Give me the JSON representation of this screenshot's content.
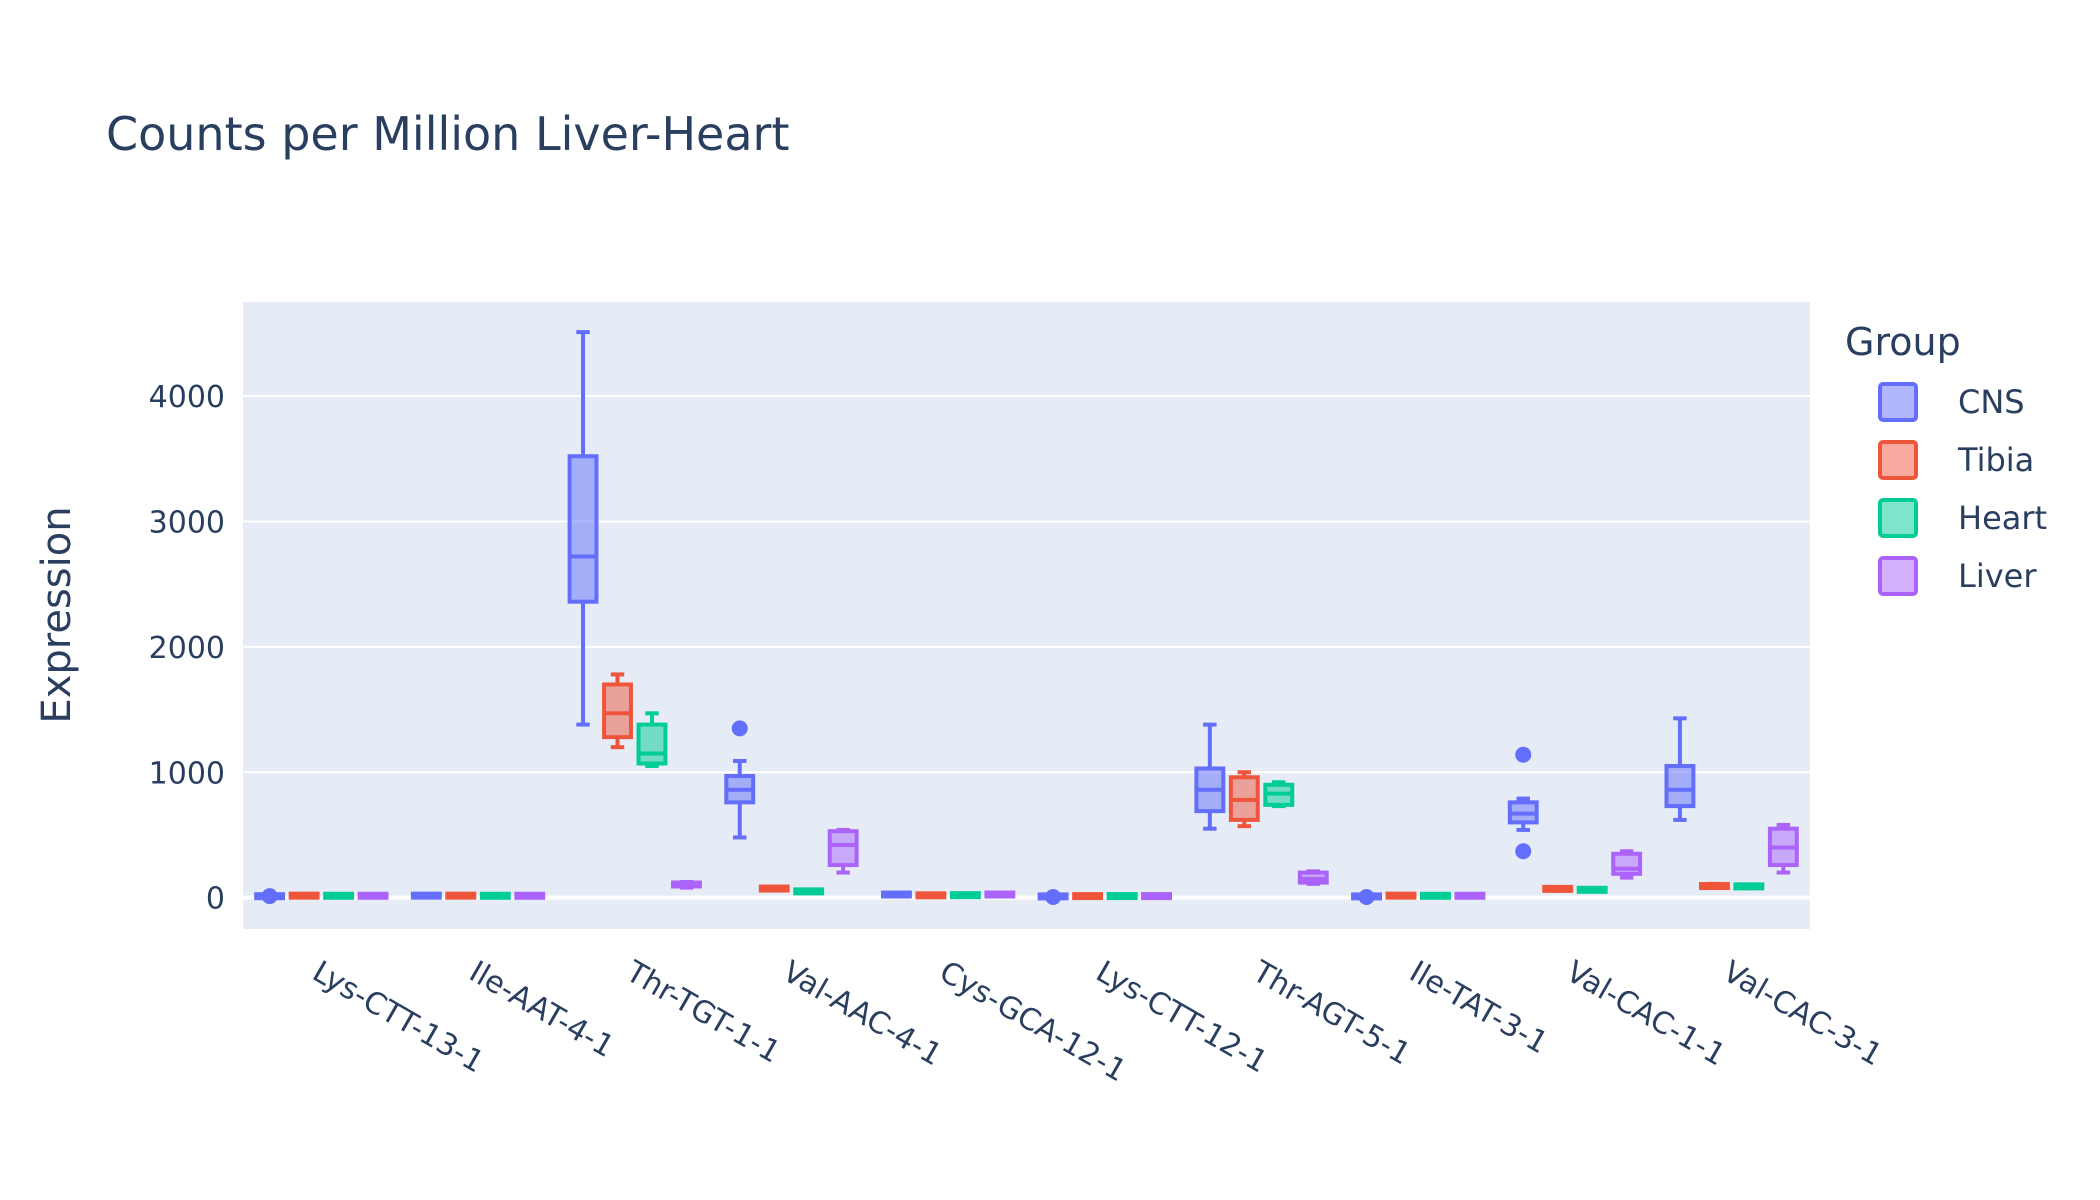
{
  "chart_data": {
    "type": "box",
    "title": "Counts per Million Liver-Heart",
    "xlabel": "",
    "ylabel": "Expression",
    "ylim": [
      -250,
      4750
    ],
    "yticks": [
      0,
      1000,
      2000,
      3000,
      4000
    ],
    "grid": true,
    "legend_title": "Group",
    "legend_position": "right",
    "categories": [
      "Lys-CTT-13-1",
      "Ile-AAT-4-1",
      "Thr-TGT-1-1",
      "Val-AAC-4-1",
      "Cys-GCA-12-1",
      "Lys-CTT-12-1",
      "Thr-AGT-5-1",
      "Ile-TAT-3-1",
      "Val-CAC-1-1",
      "Val-CAC-3-1"
    ],
    "series": [
      {
        "name": "CNS",
        "color": "#636efa",
        "boxes": [
          {
            "min": 5,
            "q1": 8,
            "median": 10,
            "q3": 15,
            "max": 20,
            "outliers": [
              12
            ]
          },
          {
            "min": 8,
            "q1": 12,
            "median": 15,
            "q3": 20,
            "max": 25,
            "outliers": []
          },
          {
            "min": 1380,
            "q1": 2360,
            "median": 2720,
            "q3": 3520,
            "max": 4510,
            "outliers": []
          },
          {
            "min": 480,
            "q1": 760,
            "median": 860,
            "q3": 970,
            "max": 1090,
            "outliers": [
              1350
            ]
          },
          {
            "min": 15,
            "q1": 20,
            "median": 25,
            "q3": 30,
            "max": 35,
            "outliers": []
          },
          {
            "min": 5,
            "q1": 8,
            "median": 10,
            "q3": 12,
            "max": 15,
            "outliers": [
              5
            ]
          },
          {
            "min": 550,
            "q1": 690,
            "median": 860,
            "q3": 1030,
            "max": 1380,
            "outliers": []
          },
          {
            "min": 5,
            "q1": 8,
            "median": 10,
            "q3": 12,
            "max": 15,
            "outliers": [
              5
            ]
          },
          {
            "min": 540,
            "q1": 600,
            "median": 670,
            "q3": 760,
            "max": 790,
            "outliers": [
              1140,
              370
            ]
          },
          {
            "min": 620,
            "q1": 730,
            "median": 860,
            "q3": 1050,
            "max": 1430,
            "outliers": []
          }
        ]
      },
      {
        "name": "Tibia",
        "color": "#ef553b",
        "boxes": [
          {
            "min": 8,
            "q1": 12,
            "median": 15,
            "q3": 20,
            "max": 25,
            "outliers": []
          },
          {
            "min": 8,
            "q1": 12,
            "median": 15,
            "q3": 20,
            "max": 25,
            "outliers": []
          },
          {
            "min": 1200,
            "q1": 1280,
            "median": 1470,
            "q3": 1700,
            "max": 1780,
            "outliers": []
          },
          {
            "min": 60,
            "q1": 65,
            "median": 75,
            "q3": 80,
            "max": 85,
            "outliers": []
          },
          {
            "min": 10,
            "q1": 15,
            "median": 18,
            "q3": 22,
            "max": 28,
            "outliers": []
          },
          {
            "min": 8,
            "q1": 10,
            "median": 12,
            "q3": 15,
            "max": 20,
            "outliers": []
          },
          {
            "min": 570,
            "q1": 620,
            "median": 780,
            "q3": 960,
            "max": 1000,
            "outliers": []
          },
          {
            "min": 8,
            "q1": 12,
            "median": 15,
            "q3": 20,
            "max": 25,
            "outliers": []
          },
          {
            "min": 55,
            "q1": 60,
            "median": 70,
            "q3": 80,
            "max": 85,
            "outliers": []
          },
          {
            "min": 80,
            "q1": 85,
            "median": 95,
            "q3": 100,
            "max": 110,
            "outliers": []
          }
        ]
      },
      {
        "name": "Heart",
        "color": "#00cc96",
        "boxes": [
          {
            "min": 8,
            "q1": 12,
            "median": 15,
            "q3": 18,
            "max": 22,
            "outliers": []
          },
          {
            "min": 8,
            "q1": 12,
            "median": 15,
            "q3": 18,
            "max": 22,
            "outliers": []
          },
          {
            "min": 1050,
            "q1": 1070,
            "median": 1150,
            "q3": 1380,
            "max": 1470,
            "outliers": []
          },
          {
            "min": 40,
            "q1": 45,
            "median": 50,
            "q3": 55,
            "max": 60,
            "outliers": []
          },
          {
            "min": 12,
            "q1": 16,
            "median": 20,
            "q3": 24,
            "max": 28,
            "outliers": []
          },
          {
            "min": 8,
            "q1": 10,
            "median": 12,
            "q3": 15,
            "max": 20,
            "outliers": []
          },
          {
            "min": 730,
            "q1": 740,
            "median": 830,
            "q3": 900,
            "max": 920,
            "outliers": []
          },
          {
            "min": 8,
            "q1": 12,
            "median": 15,
            "q3": 18,
            "max": 22,
            "outliers": []
          },
          {
            "min": 50,
            "q1": 55,
            "median": 60,
            "q3": 70,
            "max": 75,
            "outliers": []
          },
          {
            "min": 75,
            "q1": 80,
            "median": 90,
            "q3": 100,
            "max": 105,
            "outliers": []
          }
        ]
      },
      {
        "name": "Liver",
        "color": "#ab63fa",
        "boxes": [
          {
            "min": 8,
            "q1": 12,
            "median": 15,
            "q3": 18,
            "max": 22,
            "outliers": []
          },
          {
            "min": 8,
            "q1": 12,
            "median": 15,
            "q3": 18,
            "max": 22,
            "outliers": []
          },
          {
            "min": 80,
            "q1": 90,
            "median": 100,
            "q3": 120,
            "max": 125,
            "outliers": []
          },
          {
            "min": 200,
            "q1": 260,
            "median": 420,
            "q3": 530,
            "max": 540,
            "outliers": []
          },
          {
            "min": 15,
            "q1": 20,
            "median": 25,
            "q3": 30,
            "max": 35,
            "outliers": []
          },
          {
            "min": 8,
            "q1": 10,
            "median": 12,
            "q3": 15,
            "max": 20,
            "outliers": []
          },
          {
            "min": 110,
            "q1": 120,
            "median": 150,
            "q3": 200,
            "max": 210,
            "outliers": []
          },
          {
            "min": 8,
            "q1": 12,
            "median": 15,
            "q3": 18,
            "max": 22,
            "outliers": []
          },
          {
            "min": 160,
            "q1": 190,
            "median": 230,
            "q3": 350,
            "max": 370,
            "outliers": []
          },
          {
            "min": 200,
            "q1": 260,
            "median": 400,
            "q3": 550,
            "max": 580,
            "outliers": []
          }
        ]
      }
    ]
  }
}
